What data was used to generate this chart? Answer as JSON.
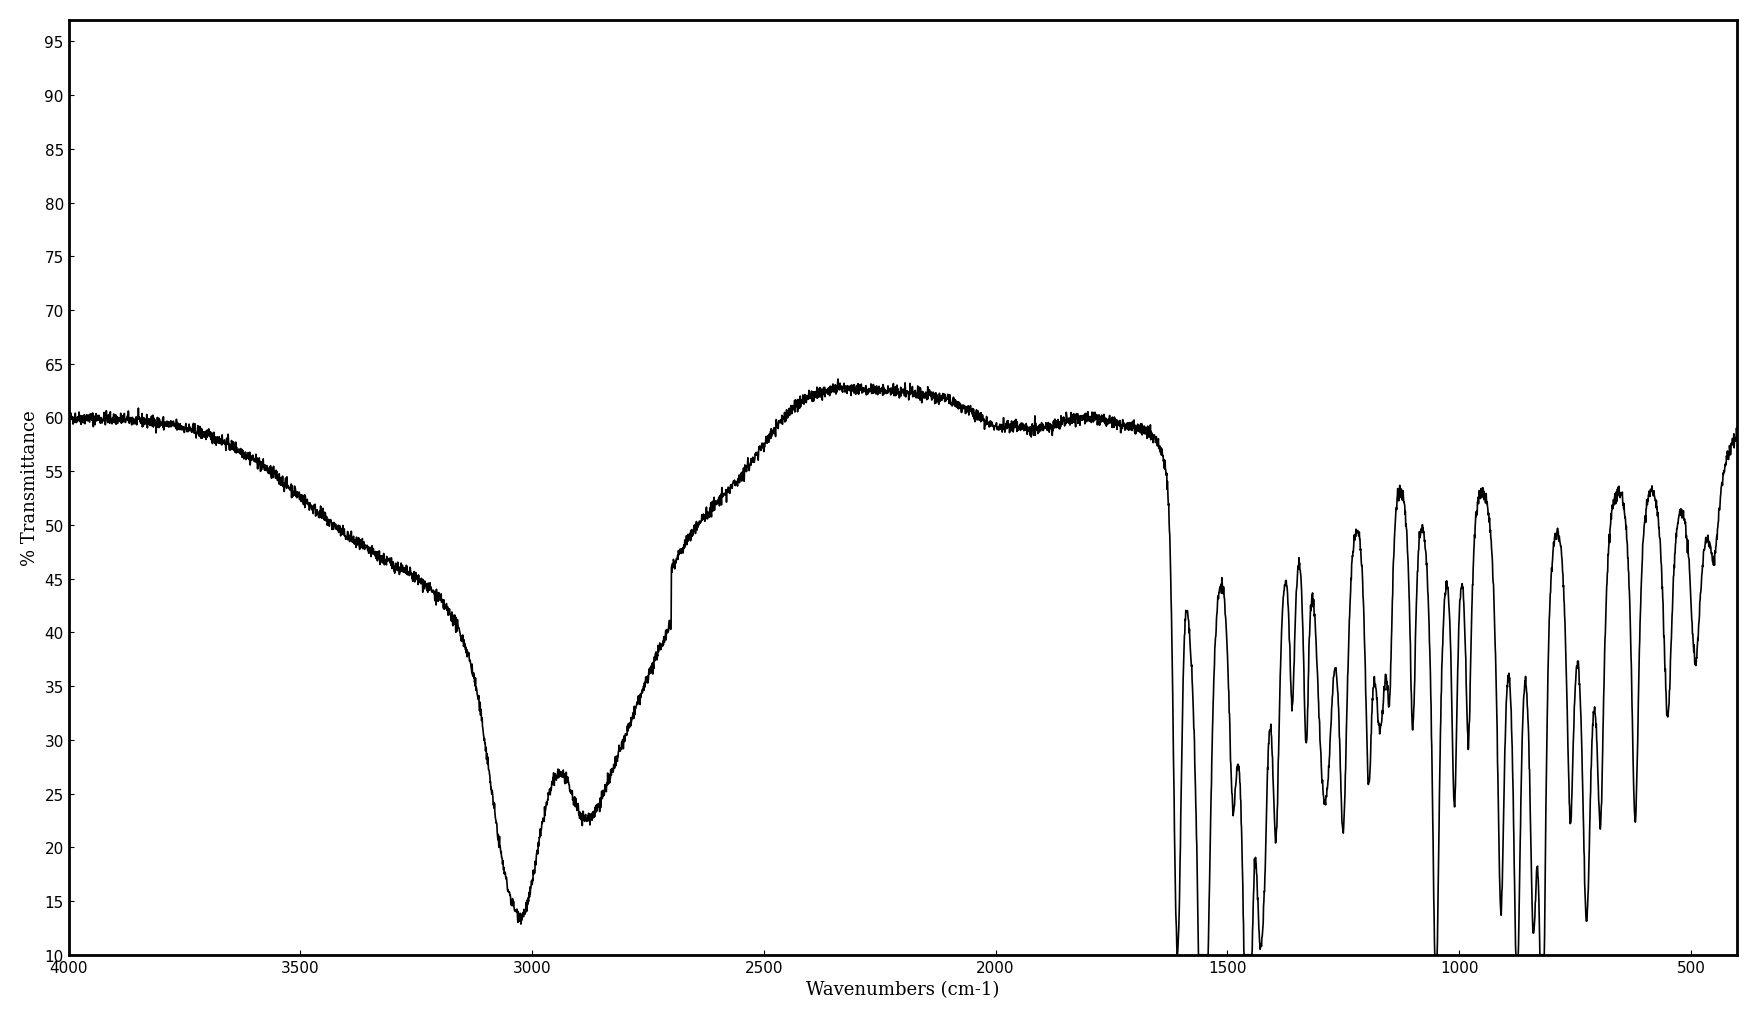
{
  "title": "",
  "xlabel": "Wavenumbers (cm-1)",
  "ylabel": "% Transmittance",
  "xlim": [
    4000,
    400
  ],
  "ylim": [
    10,
    97
  ],
  "yticks": [
    10,
    15,
    20,
    25,
    30,
    35,
    40,
    45,
    50,
    55,
    60,
    65,
    70,
    75,
    80,
    85,
    90,
    95
  ],
  "xticks": [
    4000,
    3500,
    3000,
    2500,
    2000,
    1500,
    1000,
    500
  ],
  "line_color": "#000000",
  "background_color": "#ffffff",
  "linewidth": 1.2
}
